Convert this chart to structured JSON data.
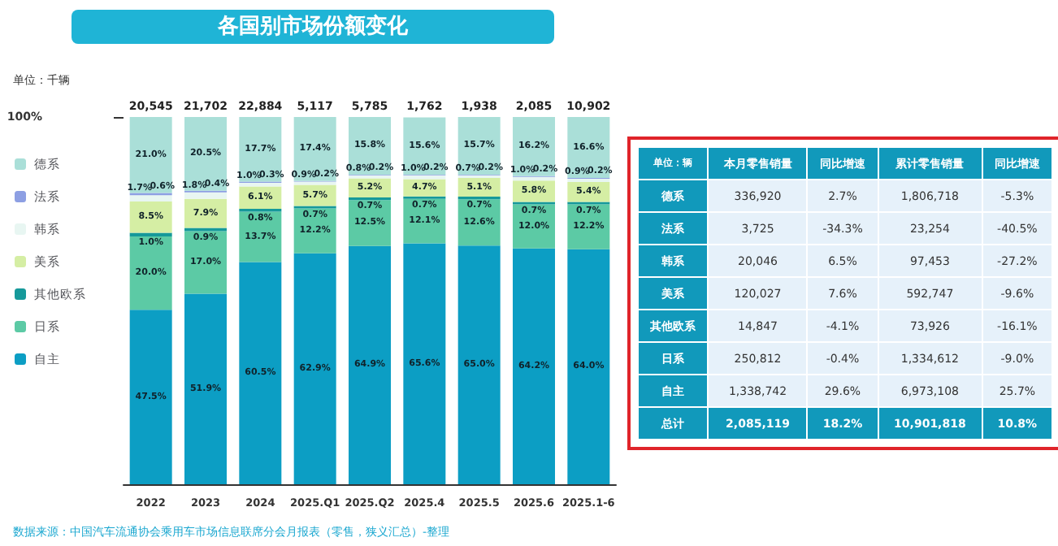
{
  "chart_data": [
    {
      "type": "bar",
      "stacked": true,
      "title": "各国别市场份额变化",
      "annotations": [
        "单位：千辆",
        "数据来源：中国汽车流通协会乘用车市场信息联席分会月报表（零售，狭义汇总）-整理",
        {
          "text": "20,545",
          "x": "2022",
          "y": 100
        },
        {
          "text": "21,702",
          "x": "2023",
          "y": 100
        },
        {
          "text": "22,884",
          "x": "2024",
          "y": 100
        },
        {
          "text": "5,117",
          "x": "2025.Q1",
          "y": 100
        },
        {
          "text": "5,785",
          "x": "2025.Q2",
          "y": 100
        },
        {
          "text": "1,762",
          "x": "2025.4",
          "y": 100
        },
        {
          "text": "1,938",
          "x": "2025.5",
          "y": 100
        },
        {
          "text": "2,085",
          "x": "2025.6",
          "y": 100
        },
        {
          "text": "10,902",
          "x": "2025.1-6",
          "y": 100
        }
      ],
      "categories": [
        "2022",
        "2023",
        "2024",
        "2025.Q1",
        "2025.Q2",
        "2025.4",
        "2025.5",
        "2025.6",
        "2025.1-6"
      ],
      "ylim": [
        0,
        100
      ],
      "yticks": [
        {
          "value": 100,
          "label": "100%"
        }
      ],
      "grid": false,
      "legend": "left",
      "series": [
        {
          "name": "自主",
          "color": "#0c9ec4",
          "values": [
            47.5,
            51.9,
            60.5,
            62.9,
            64.9,
            65.6,
            65.0,
            64.2,
            64.0
          ],
          "value_labels": [
            "47.5%",
            "51.9%",
            "60.5%",
            "62.9%",
            "64.9%",
            "65.6%",
            "65.0%",
            "64.2%",
            "64.0%"
          ]
        },
        {
          "name": "日系",
          "color": "#5ccaa5",
          "values": [
            20.0,
            17.0,
            13.7,
            12.2,
            12.5,
            12.1,
            12.6,
            12.0,
            12.2
          ],
          "value_labels": [
            "20.0%",
            "17.0%",
            "13.7%",
            "12.2%",
            "12.5%",
            "12.1%",
            "12.6%",
            "12.0%",
            "12.2%"
          ]
        },
        {
          "name": "其他欧系",
          "color": "#16999a",
          "values": [
            1.0,
            0.9,
            0.8,
            0.7,
            0.7,
            0.7,
            0.7,
            0.7,
            0.7
          ],
          "value_labels": [
            "1.0%",
            "0.9%",
            "0.8%",
            "0.7%",
            "0.7%",
            "0.7%",
            "0.7%",
            "0.7%",
            "0.7%"
          ]
        },
        {
          "name": "美系",
          "color": "#d5eea4",
          "values": [
            8.5,
            7.9,
            6.1,
            5.7,
            5.2,
            4.7,
            5.1,
            5.8,
            5.4
          ],
          "value_labels": [
            "8.5%",
            "7.9%",
            "6.1%",
            "5.7%",
            "5.2%",
            "4.7%",
            "5.1%",
            "5.8%",
            "5.4%"
          ]
        },
        {
          "name": "韩系",
          "color": "#e8f6f2",
          "values": [
            1.7,
            1.8,
            1.0,
            0.9,
            0.8,
            1.0,
            0.7,
            1.0,
            0.9
          ],
          "value_labels": [
            "1.7%",
            "1.8%",
            "1.0%",
            "0.9%",
            "0.8%",
            "1.0%",
            "0.7%",
            "1.0%",
            "0.9%"
          ]
        },
        {
          "name": "法系",
          "color": "#8d9fe3",
          "values": [
            0.6,
            0.4,
            0.3,
            0.2,
            0.2,
            0.2,
            0.2,
            0.2,
            0.2
          ],
          "value_labels": [
            "0.6%",
            "0.4%",
            "0.3%",
            "0.2%",
            "0.2%",
            "0.2%",
            "0.2%",
            "0.2%",
            "0.2%"
          ]
        },
        {
          "name": "德系",
          "color": "#aadfd8",
          "values": [
            21.0,
            20.5,
            17.7,
            17.4,
            15.8,
            15.6,
            15.7,
            16.2,
            16.6
          ],
          "value_labels": [
            "21.0%",
            "20.5%",
            "17.7%",
            "17.4%",
            "15.8%",
            "15.6%",
            "15.7%",
            "16.2%",
            "16.6%"
          ]
        }
      ]
    },
    {
      "type": "other",
      "title": "单位：辆",
      "categories": [
        "本月零售销量",
        "同比增速",
        "累计零售销量",
        "同比增速"
      ],
      "y_categories": [
        "德系",
        "法系",
        "韩系",
        "美系",
        "其他欧系",
        "日系",
        "自主",
        "总计"
      ],
      "cell_labels": [
        [
          "336,920",
          "2.7%",
          "1,806,718",
          "-5.3%"
        ],
        [
          "3,725",
          "-34.3%",
          "23,254",
          "-40.5%"
        ],
        [
          "20,046",
          "6.5%",
          "97,453",
          "-27.2%"
        ],
        [
          "120,027",
          "7.6%",
          "592,747",
          "-9.6%"
        ],
        [
          "14,847",
          "-4.1%",
          "73,926",
          "-16.1%"
        ],
        [
          "250,812",
          "-0.4%",
          "1,334,612",
          "-9.0%"
        ],
        [
          "1,338,742",
          "29.6%",
          "6,973,108",
          "25.7%"
        ],
        [
          "2,085,119",
          "18.2%",
          "10,901,818",
          "10.8%"
        ]
      ]
    }
  ]
}
